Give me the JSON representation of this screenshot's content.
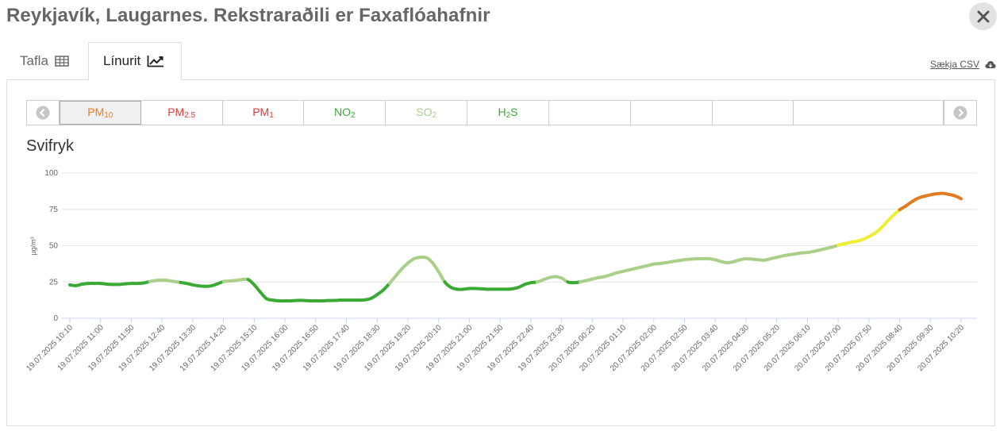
{
  "window": {
    "title": "Reykjavík, Laugarnes. Rekstraraðili er Faxaflóahafnir"
  },
  "tabs": [
    {
      "label": "Tafla",
      "icon": "table-icon"
    },
    {
      "label": "Línurit",
      "icon": "line-chart-icon"
    }
  ],
  "download": {
    "label": "Sækja CSV",
    "icon": "cloud-download-icon"
  },
  "pollutants": [
    {
      "base": "PM",
      "sub": "10",
      "color": "#e67e22"
    },
    {
      "base": "PM",
      "sub": "2.5",
      "color": "#e53935"
    },
    {
      "base": "PM",
      "sub": "1",
      "color": "#e53935"
    },
    {
      "base": "NO",
      "sub": "2",
      "color": "#3aaa35"
    },
    {
      "base": "SO",
      "sub": "2",
      "color": "#a9cf88"
    },
    {
      "base": "H",
      "sub": "2",
      "tail": "S",
      "color": "#3aaa35"
    }
  ],
  "chart_data": {
    "type": "line",
    "title": "Svifryk",
    "ylabel": "µg/m³",
    "ylim": [
      0,
      100
    ],
    "yticks": [
      0,
      25,
      50,
      75,
      100
    ],
    "xtick_labels": [
      "19.07.2025 10:10",
      "19.07.2025 11:00",
      "19.07.2025 11:50",
      "19.07.2025 12:40",
      "19.07.2025 13:30",
      "19.07.2025 14:20",
      "19.07.2025 15:10",
      "19.07.2025 16:00",
      "19.07.2025 16:50",
      "19.07.2025 17:40",
      "19.07.2025 18:30",
      "19.07.2025 19:20",
      "19.07.2025 20:10",
      "19.07.2025 21:00",
      "19.07.2025 21:50",
      "19.07.2025 22:40",
      "19.07.2025 23:30",
      "20.07.2025 00:20",
      "20.07.2025 01:10",
      "20.07.2025 02:00",
      "20.07.2025 02:50",
      "20.07.2025 03:40",
      "20.07.2025 04:30",
      "20.07.2025 05:20",
      "20.07.2025 06:10",
      "20.07.2025 07:00",
      "20.07.2025 07:50",
      "20.07.2025 08:40",
      "20.07.2025 09:30",
      "20.07.2025 10:20"
    ],
    "grid": true,
    "legend": "none",
    "series": [
      {
        "values": [
          23,
          22.5,
          23.5,
          24,
          24,
          24,
          23.5,
          23.3,
          23.3,
          23.7,
          24,
          24,
          24.3,
          25.3,
          26,
          26.3,
          26,
          25.3,
          24.7,
          24,
          23,
          22.3,
          22,
          22.3,
          23.7,
          25.3,
          25.7,
          26,
          26.7,
          26.7,
          23,
          18,
          13.5,
          12.5,
          12,
          12,
          12,
          12.3,
          12.3,
          12,
          12,
          12,
          12.2,
          12.3,
          12.5,
          12.5,
          12.5,
          12.5,
          12.7,
          13.7,
          16.3,
          19.5,
          24,
          29,
          34,
          38,
          41,
          42,
          41.7,
          38.3,
          32,
          25,
          21.3,
          20,
          20,
          20.5,
          20.5,
          20.3,
          20,
          20,
          20,
          20,
          20.3,
          21.3,
          23.3,
          24.5,
          25,
          26.5,
          28,
          28.7,
          27.7,
          25,
          24.5,
          25,
          26,
          27,
          28,
          28.7,
          30,
          31.3,
          32.3,
          33.3,
          34.3,
          35.3,
          36.3,
          37.3,
          37.7,
          38.3,
          39,
          39.7,
          40.3,
          40.7,
          41,
          41,
          41,
          40.3,
          39,
          38.3,
          39,
          40.3,
          41,
          40.7,
          40.3,
          40,
          41,
          42,
          43,
          43.7,
          44.3,
          45,
          45.3,
          46,
          47,
          48,
          49,
          50.3,
          51.3,
          52.3,
          53,
          54.3,
          56.3,
          58.7,
          62.3,
          66.7,
          71,
          74.7,
          77.3,
          80.3,
          82.7,
          84,
          85,
          85.7,
          86,
          85.3,
          84.3,
          82.3
        ]
      }
    ]
  }
}
